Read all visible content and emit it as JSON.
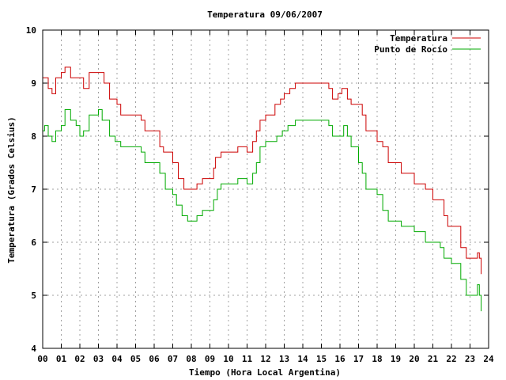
{
  "chart_data": {
    "type": "line",
    "title": "Temperatura 09/06/2007",
    "xlabel": "Tiempo (Hora Local Argentina)",
    "ylabel": "Temperatura (Grados Celsius)",
    "xlim": [
      0,
      24
    ],
    "ylim": [
      4,
      10
    ],
    "x_ticks": [
      0,
      1,
      2,
      3,
      4,
      5,
      6,
      7,
      8,
      9,
      10,
      11,
      12,
      13,
      14,
      15,
      16,
      17,
      18,
      19,
      20,
      21,
      22,
      23,
      24
    ],
    "x_tick_labels": [
      "00",
      "01",
      "02",
      "03",
      "04",
      "05",
      "06",
      "07",
      "08",
      "09",
      "10",
      "11",
      "12",
      "13",
      "14",
      "15",
      "16",
      "17",
      "18",
      "19",
      "20",
      "21",
      "22",
      "23",
      "24"
    ],
    "y_ticks": [
      4,
      5,
      6,
      7,
      8,
      9,
      10
    ],
    "y_tick_labels": [
      "4",
      "5",
      "6",
      "7",
      "8",
      "9",
      "10"
    ],
    "grid": true,
    "legend": "top-right",
    "series": [
      {
        "name": "Temperatura",
        "color": "#cc0000",
        "points": [
          [
            0.0,
            9.1
          ],
          [
            0.2,
            9.1
          ],
          [
            0.3,
            8.9
          ],
          [
            0.5,
            8.8
          ],
          [
            0.7,
            9.1
          ],
          [
            1.0,
            9.2
          ],
          [
            1.2,
            9.3
          ],
          [
            1.5,
            9.1
          ],
          [
            2.0,
            9.1
          ],
          [
            2.2,
            8.9
          ],
          [
            2.5,
            9.2
          ],
          [
            3.0,
            9.2
          ],
          [
            3.3,
            9.0
          ],
          [
            3.6,
            8.7
          ],
          [
            4.0,
            8.6
          ],
          [
            4.2,
            8.4
          ],
          [
            5.0,
            8.4
          ],
          [
            5.3,
            8.3
          ],
          [
            5.5,
            8.1
          ],
          [
            6.0,
            8.1
          ],
          [
            6.3,
            7.8
          ],
          [
            6.5,
            7.7
          ],
          [
            7.0,
            7.5
          ],
          [
            7.3,
            7.2
          ],
          [
            7.6,
            7.0
          ],
          [
            8.0,
            7.0
          ],
          [
            8.3,
            7.1
          ],
          [
            8.6,
            7.2
          ],
          [
            9.0,
            7.2
          ],
          [
            9.2,
            7.4
          ],
          [
            9.3,
            7.6
          ],
          [
            9.6,
            7.7
          ],
          [
            10.0,
            7.7
          ],
          [
            10.5,
            7.8
          ],
          [
            10.8,
            7.8
          ],
          [
            11.0,
            7.7
          ],
          [
            11.3,
            7.9
          ],
          [
            11.5,
            8.1
          ],
          [
            11.7,
            8.3
          ],
          [
            12.0,
            8.4
          ],
          [
            12.3,
            8.4
          ],
          [
            12.5,
            8.6
          ],
          [
            12.8,
            8.7
          ],
          [
            13.0,
            8.8
          ],
          [
            13.3,
            8.9
          ],
          [
            13.6,
            9.0
          ],
          [
            14.0,
            9.0
          ],
          [
            14.5,
            9.0
          ],
          [
            15.0,
            9.0
          ],
          [
            15.4,
            8.9
          ],
          [
            15.6,
            8.7
          ],
          [
            15.9,
            8.8
          ],
          [
            16.1,
            8.9
          ],
          [
            16.4,
            8.7
          ],
          [
            16.6,
            8.6
          ],
          [
            17.0,
            8.6
          ],
          [
            17.2,
            8.4
          ],
          [
            17.4,
            8.1
          ],
          [
            17.8,
            8.1
          ],
          [
            18.0,
            7.9
          ],
          [
            18.3,
            7.8
          ],
          [
            18.6,
            7.5
          ],
          [
            19.0,
            7.5
          ],
          [
            19.3,
            7.3
          ],
          [
            19.6,
            7.3
          ],
          [
            20.0,
            7.1
          ],
          [
            20.3,
            7.1
          ],
          [
            20.6,
            7.0
          ],
          [
            21.0,
            6.8
          ],
          [
            21.4,
            6.8
          ],
          [
            21.6,
            6.5
          ],
          [
            21.8,
            6.3
          ],
          [
            22.0,
            6.3
          ],
          [
            22.3,
            6.3
          ],
          [
            22.5,
            5.9
          ],
          [
            22.8,
            5.7
          ],
          [
            23.0,
            5.7
          ],
          [
            23.3,
            5.7
          ],
          [
            23.4,
            5.8
          ],
          [
            23.5,
            5.7
          ],
          [
            23.6,
            5.4
          ]
        ]
      },
      {
        "name": "Punto de Rocío",
        "color": "#00aa00",
        "points": [
          [
            0.0,
            8.1
          ],
          [
            0.1,
            8.2
          ],
          [
            0.3,
            8.0
          ],
          [
            0.5,
            7.9
          ],
          [
            0.7,
            8.1
          ],
          [
            1.0,
            8.2
          ],
          [
            1.2,
            8.5
          ],
          [
            1.5,
            8.3
          ],
          [
            1.8,
            8.2
          ],
          [
            2.0,
            8.0
          ],
          [
            2.2,
            8.1
          ],
          [
            2.5,
            8.4
          ],
          [
            3.0,
            8.5
          ],
          [
            3.2,
            8.3
          ],
          [
            3.6,
            8.0
          ],
          [
            3.9,
            7.9
          ],
          [
            4.2,
            7.8
          ],
          [
            4.5,
            7.8
          ],
          [
            5.0,
            7.8
          ],
          [
            5.3,
            7.7
          ],
          [
            5.5,
            7.5
          ],
          [
            6.0,
            7.5
          ],
          [
            6.3,
            7.3
          ],
          [
            6.6,
            7.0
          ],
          [
            7.0,
            6.9
          ],
          [
            7.2,
            6.7
          ],
          [
            7.5,
            6.5
          ],
          [
            7.8,
            6.4
          ],
          [
            8.0,
            6.4
          ],
          [
            8.3,
            6.5
          ],
          [
            8.6,
            6.6
          ],
          [
            9.0,
            6.6
          ],
          [
            9.2,
            6.8
          ],
          [
            9.4,
            7.0
          ],
          [
            9.6,
            7.1
          ],
          [
            10.0,
            7.1
          ],
          [
            10.5,
            7.2
          ],
          [
            10.8,
            7.2
          ],
          [
            11.0,
            7.1
          ],
          [
            11.3,
            7.3
          ],
          [
            11.5,
            7.5
          ],
          [
            11.7,
            7.8
          ],
          [
            12.0,
            7.9
          ],
          [
            12.3,
            7.9
          ],
          [
            12.6,
            8.0
          ],
          [
            12.9,
            8.1
          ],
          [
            13.2,
            8.2
          ],
          [
            13.6,
            8.3
          ],
          [
            14.0,
            8.3
          ],
          [
            14.5,
            8.3
          ],
          [
            15.0,
            8.3
          ],
          [
            15.4,
            8.2
          ],
          [
            15.6,
            8.0
          ],
          [
            16.0,
            8.0
          ],
          [
            16.2,
            8.2
          ],
          [
            16.4,
            8.0
          ],
          [
            16.6,
            7.8
          ],
          [
            17.0,
            7.5
          ],
          [
            17.2,
            7.3
          ],
          [
            17.4,
            7.0
          ],
          [
            17.8,
            7.0
          ],
          [
            18.0,
            6.9
          ],
          [
            18.3,
            6.6
          ],
          [
            18.6,
            6.4
          ],
          [
            19.0,
            6.4
          ],
          [
            19.3,
            6.3
          ],
          [
            19.6,
            6.3
          ],
          [
            20.0,
            6.2
          ],
          [
            20.3,
            6.2
          ],
          [
            20.6,
            6.0
          ],
          [
            21.0,
            6.0
          ],
          [
            21.4,
            5.9
          ],
          [
            21.6,
            5.7
          ],
          [
            22.0,
            5.6
          ],
          [
            22.3,
            5.6
          ],
          [
            22.5,
            5.3
          ],
          [
            22.8,
            5.0
          ],
          [
            23.0,
            5.0
          ],
          [
            23.3,
            5.0
          ],
          [
            23.4,
            5.2
          ],
          [
            23.5,
            5.0
          ],
          [
            23.6,
            4.7
          ]
        ]
      }
    ]
  }
}
